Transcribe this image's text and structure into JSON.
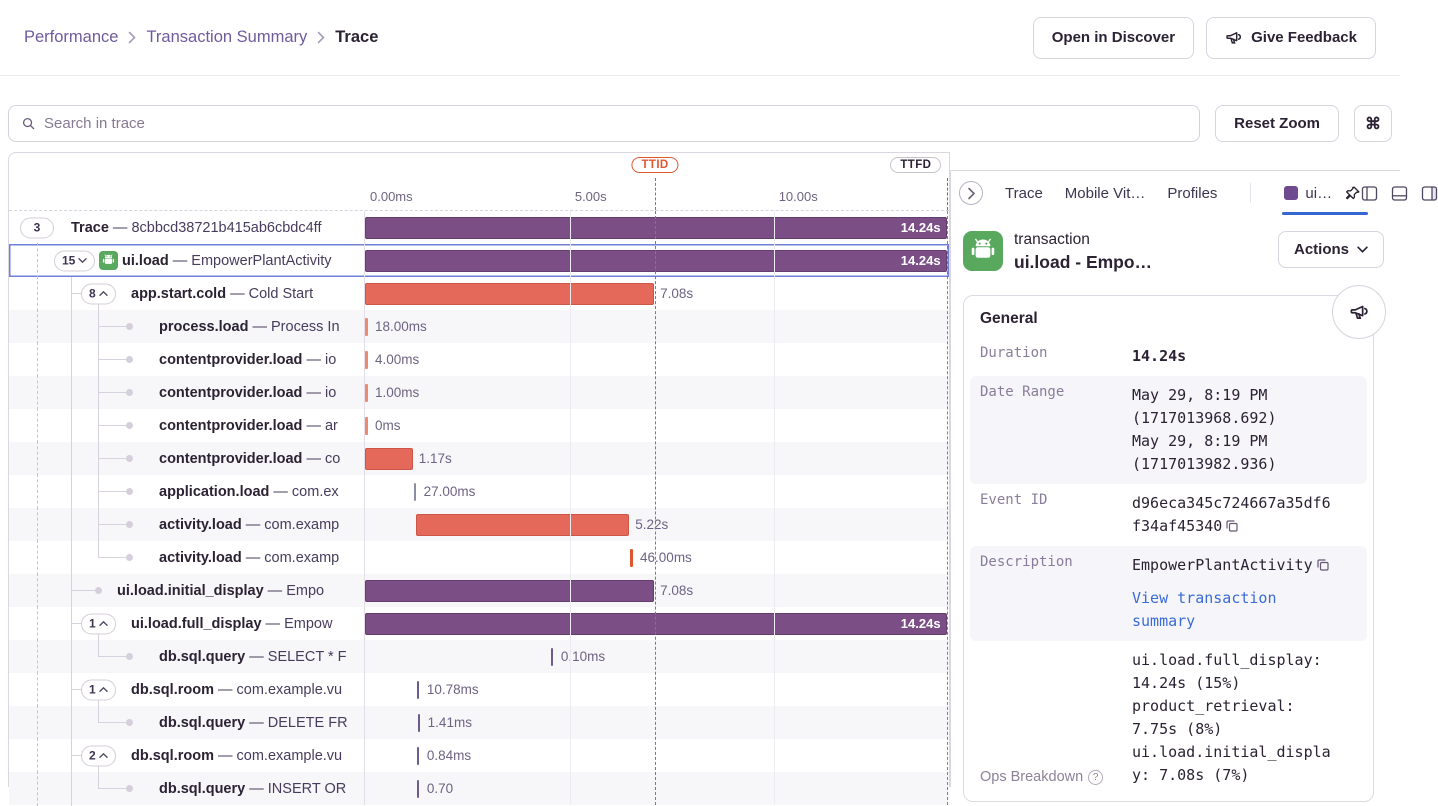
{
  "colors": {
    "purple_bar": "#7b4f86",
    "orange_bar": "#e5695a",
    "ttid_red": "#e0562f",
    "ttfd_gray": "#6f6a7a",
    "selection_blue": "#6f80d9",
    "tab_underline": "#3567d1",
    "link_blue": "#3b6bd6",
    "android_green": "#58a85e",
    "swatch_purple": "#6e4a8e",
    "alt_row": "#f7f6f9",
    "tick_orange": "#ec8a74",
    "tick_gray": "#8b8fa3",
    "tick_purple": "#6b5b8f",
    "tick_red": "#e0562f"
  },
  "header": {
    "breadcrumbs": [
      "Performance",
      "Transaction Summary",
      "Trace"
    ],
    "open_in_discover": "Open in Discover",
    "give_feedback": "Give Feedback"
  },
  "toolbar": {
    "search_placeholder": "Search in trace",
    "reset_zoom": "Reset Zoom",
    "shortcut": "⌘"
  },
  "timeline": {
    "total_s": 14.3,
    "axis_ticks": [
      {
        "t": 0,
        "label": "0.00ms"
      },
      {
        "t": 5,
        "label": "5.00s"
      },
      {
        "t": 10,
        "label": "10.00s"
      }
    ],
    "gridlines_s": [
      5,
      10
    ],
    "ttid": {
      "label": "TTID",
      "time_s": 7.09
    },
    "ttfd": {
      "label": "TTFD",
      "time_s": 14.26
    }
  },
  "rows": [
    {
      "op": "Trace",
      "desc": "8cbbcd38721b415ab6cbdc4ff",
      "depth": 0,
      "marker": "badge",
      "badge": "3",
      "guides": [],
      "bar": {
        "type": "bar",
        "color": "purple",
        "start_s": 0,
        "dur_s": 14.24,
        "label": "14.24s",
        "label_inside": true
      }
    },
    {
      "op": "ui.load",
      "desc": "EmpowerPlantActivity",
      "depth": 1,
      "marker": "badge",
      "badge": "15",
      "chevron": "down",
      "icon": "android",
      "selected": true,
      "guides": [
        "d0"
      ],
      "bar": {
        "type": "bar",
        "color": "purple",
        "start_s": 0,
        "dur_s": 14.24,
        "label": "14.24s",
        "label_inside": true
      }
    },
    {
      "op": "app.start.cold",
      "desc": "Cold Start",
      "depth": 2,
      "marker": "badge",
      "badge": "8",
      "chevron": "up",
      "guides": [
        "d0",
        "s1"
      ],
      "elbow": true,
      "stub": true,
      "bar": {
        "type": "bar",
        "color": "orange",
        "start_s": 0,
        "dur_s": 7.08,
        "label": "7.08s"
      }
    },
    {
      "op": "process.load",
      "desc": "Process In",
      "depth": 3,
      "marker": "dot",
      "guides": [
        "d0",
        "s1",
        "s2"
      ],
      "elbow": true,
      "bar": {
        "type": "tick",
        "color": "orange",
        "start_s": 0,
        "label": "18.00ms"
      }
    },
    {
      "op": "contentprovider.load",
      "desc": "io",
      "depth": 3,
      "marker": "dot",
      "guides": [
        "d0",
        "s1",
        "s2"
      ],
      "elbow": true,
      "bar": {
        "type": "tick",
        "color": "orange",
        "start_s": 0,
        "label": "4.00ms"
      }
    },
    {
      "op": "contentprovider.load",
      "desc": "io",
      "depth": 3,
      "marker": "dot",
      "guides": [
        "d0",
        "s1",
        "s2"
      ],
      "elbow": true,
      "bar": {
        "type": "tick",
        "color": "orange",
        "start_s": 0,
        "label": "1.00ms"
      }
    },
    {
      "op": "contentprovider.load",
      "desc": "ar",
      "depth": 3,
      "marker": "dot",
      "guides": [
        "d0",
        "s1",
        "s2"
      ],
      "elbow": true,
      "bar": {
        "type": "tick",
        "color": "orange",
        "start_s": 0,
        "label": "0ms"
      }
    },
    {
      "op": "contentprovider.load",
      "desc": "co",
      "depth": 3,
      "marker": "dot",
      "guides": [
        "d0",
        "s1",
        "s2"
      ],
      "elbow": true,
      "bar": {
        "type": "bar",
        "color": "orange",
        "start_s": 0,
        "dur_s": 1.17,
        "label": "1.17s"
      }
    },
    {
      "op": "application.load",
      "desc": "com.ex",
      "depth": 3,
      "marker": "dot",
      "guides": [
        "d0",
        "s1",
        "s2"
      ],
      "elbow": true,
      "bar": {
        "type": "tick",
        "color": "gray",
        "start_s": 1.19,
        "label": "27.00ms"
      }
    },
    {
      "op": "activity.load",
      "desc": "com.examp",
      "depth": 3,
      "marker": "dot",
      "guides": [
        "d0",
        "s1",
        "s2"
      ],
      "elbow": true,
      "bar": {
        "type": "bar",
        "color": "orange",
        "start_s": 1.25,
        "dur_s": 5.22,
        "label": "5.22s"
      }
    },
    {
      "op": "activity.load",
      "desc": "com.examp",
      "depth": 3,
      "marker": "dot",
      "guides": [
        "d0",
        "s1",
        "s2h"
      ],
      "elbow": true,
      "bar": {
        "type": "tick",
        "color": "red",
        "start_s": 6.49,
        "label": "46.00ms"
      }
    },
    {
      "op": "ui.load.initial_display",
      "desc": "Empo",
      "depth": 2,
      "marker": "dot",
      "guides": [
        "d0",
        "s1"
      ],
      "elbow": true,
      "bar": {
        "type": "bar",
        "color": "purple",
        "start_s": 0,
        "dur_s": 7.08,
        "label": "7.08s"
      }
    },
    {
      "op": "ui.load.full_display",
      "desc": "Empow",
      "depth": 2,
      "marker": "badge",
      "badge": "1",
      "chevron": "up",
      "guides": [
        "d0",
        "s1"
      ],
      "elbow": true,
      "stub": true,
      "bar": {
        "type": "bar",
        "color": "purple",
        "start_s": 0,
        "dur_s": 14.24,
        "label": "14.24s",
        "label_inside": true
      }
    },
    {
      "op": "db.sql.query",
      "desc": "SELECT * F",
      "depth": 3,
      "marker": "dot",
      "guides": [
        "d0",
        "s1",
        "s2h"
      ],
      "elbow": true,
      "bar": {
        "type": "tick",
        "color": "purple",
        "start_s": 4.55,
        "label": "0.10ms"
      }
    },
    {
      "op": "db.sql.room",
      "desc": "com.example.vu",
      "depth": 2,
      "marker": "badge",
      "badge": "1",
      "chevron": "up",
      "guides": [
        "d0",
        "s1"
      ],
      "elbow": true,
      "stub": true,
      "bar": {
        "type": "tick",
        "color": "purple",
        "start_s": 1.27,
        "label": "10.78ms"
      }
    },
    {
      "op": "db.sql.query",
      "desc": "DELETE FR",
      "depth": 3,
      "marker": "dot",
      "guides": [
        "d0",
        "s1",
        "s2h"
      ],
      "elbow": true,
      "bar": {
        "type": "tick",
        "color": "purple",
        "start_s": 1.29,
        "label": "1.41ms"
      }
    },
    {
      "op": "db.sql.room",
      "desc": "com.example.vu",
      "depth": 2,
      "marker": "badge",
      "badge": "2",
      "chevron": "up",
      "guides": [
        "d0",
        "s1"
      ],
      "elbow": true,
      "stub": true,
      "bar": {
        "type": "tick",
        "color": "purple",
        "start_s": 1.27,
        "label": "0.84ms"
      }
    },
    {
      "op": "db.sql.query",
      "desc": "INSERT OR",
      "depth": 3,
      "marker": "dot",
      "guides": [
        "d0",
        "s1",
        "s2h"
      ],
      "elbow": true,
      "bar": {
        "type": "tick",
        "color": "purple",
        "start_s": 1.27,
        "label": "0.70"
      }
    }
  ],
  "drawer": {
    "tabs": [
      {
        "label": "Trace"
      },
      {
        "label": "Mobile Vit…"
      },
      {
        "label": "Profiles"
      },
      {
        "label": "ui…",
        "active": true,
        "swatch": "#6e4a8e",
        "divider_before": true
      }
    ],
    "transaction": {
      "type_label": "transaction",
      "title": "ui.load - Empo…",
      "actions_label": "Actions"
    },
    "general": {
      "title": "General",
      "rows": [
        {
          "label": "Duration",
          "value": "14.24s",
          "bold": true
        },
        {
          "label": "Date Range",
          "shaded": true,
          "lines": [
            "May 29, 8:19 PM (1717013968.692)",
            "May 29, 8:19 PM (1717013982.936)"
          ]
        },
        {
          "label": "Event ID",
          "value": "d96eca345c724667a35df6f34af45340",
          "copy": true
        },
        {
          "label": "Description",
          "shaded": true,
          "value": "EmpowerPlantActivity",
          "copy": true,
          "link": "View transaction summary"
        },
        {
          "label": "Ops Breakdown",
          "label_sans": true,
          "label_bottom": true,
          "help": true,
          "ops": [
            "ui.load.full_display: 14.24s (15%)",
            "product_retrieval: 7.75s (8%)",
            "ui.load.initial_display: 7.08s (7%)"
          ]
        }
      ]
    }
  }
}
